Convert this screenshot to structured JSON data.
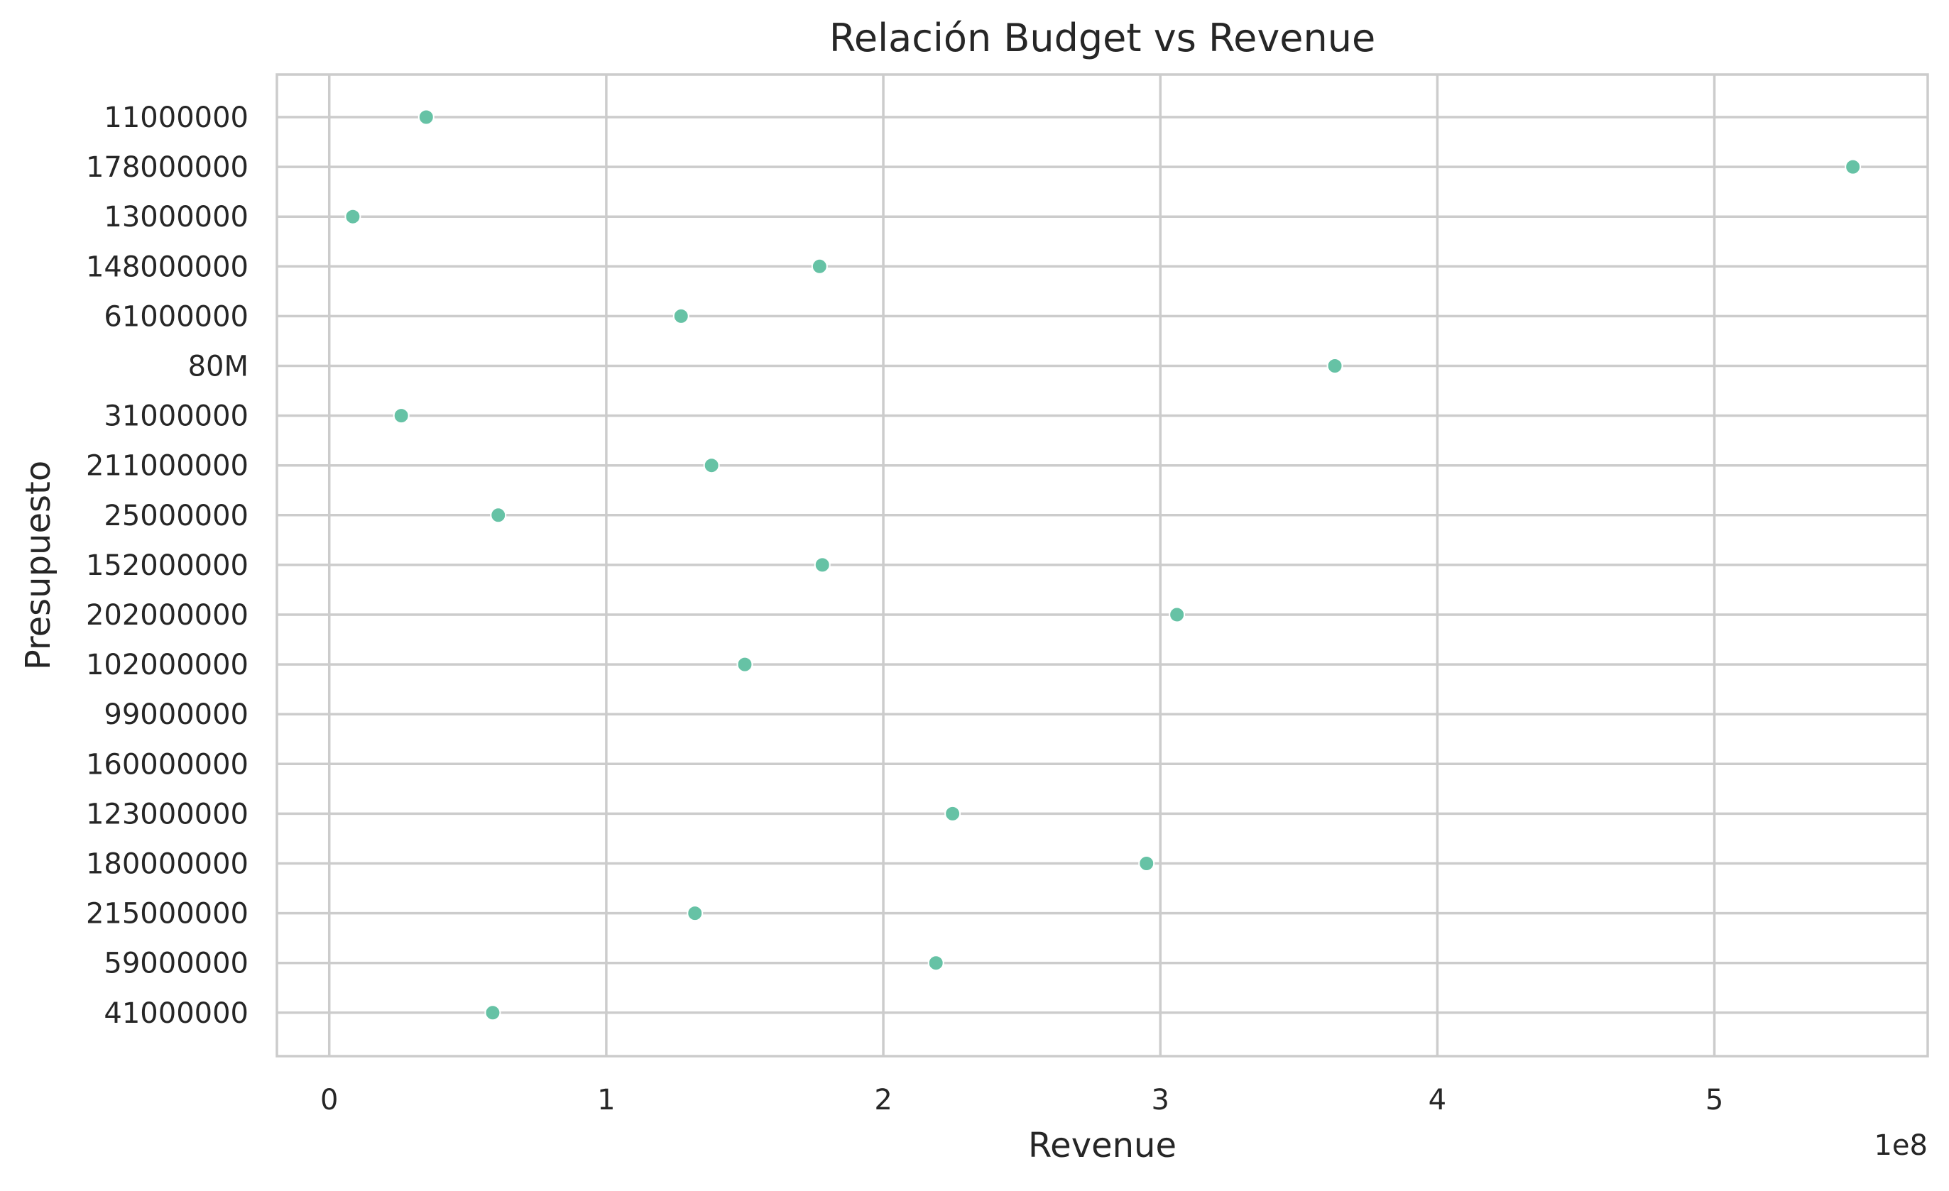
{
  "chart_data": {
    "type": "scatter",
    "title": "Relación Budget vs Revenue",
    "xlabel": "Revenue",
    "ylabel": "Presupuesto",
    "x_offset_label": "1e8",
    "xlim": [
      -18900000,
      577000000
    ],
    "xticks": [
      0,
      100000000,
      200000000,
      300000000,
      400000000,
      500000000
    ],
    "xtick_labels": [
      "0",
      "1",
      "2",
      "3",
      "4",
      "5"
    ],
    "categories": [
      "11000000",
      "178000000",
      "13000000",
      "148000000",
      "61000000",
      "80M",
      "31000000",
      "211000000",
      "25000000",
      "152000000",
      "202000000",
      "102000000",
      "99000000",
      "160000000",
      "123000000",
      "180000000",
      "215000000",
      "59000000",
      "41000000"
    ],
    "series": [
      {
        "values": [
          35000000,
          550000000,
          8500000,
          177000000,
          127000000,
          363000000,
          26000000,
          138000000,
          61000000,
          178000000,
          306000000,
          150000000,
          null,
          null,
          225000000,
          295000000,
          132000000,
          219000000,
          59000000
        ]
      }
    ],
    "grid": true,
    "legend": false,
    "marker_color": "#66c2a5"
  }
}
